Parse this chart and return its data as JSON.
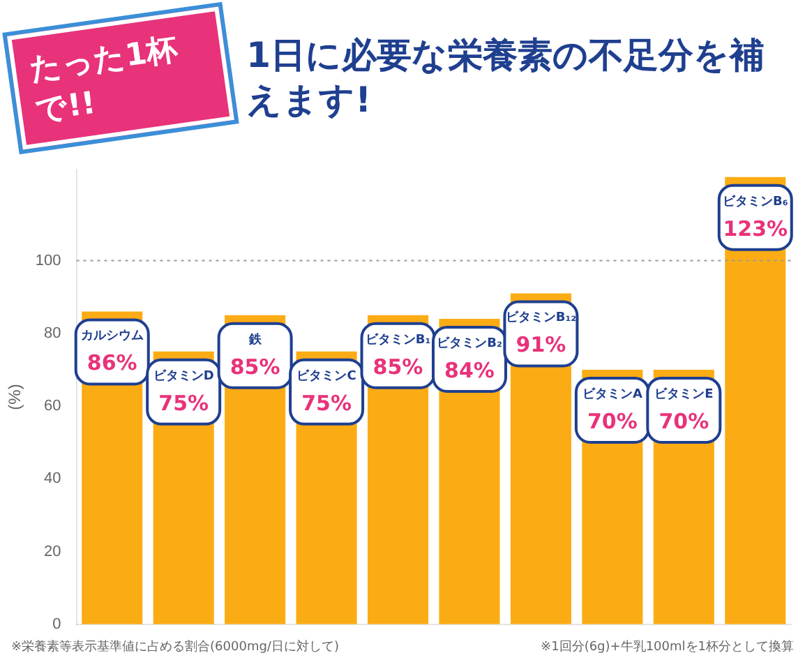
{
  "chart_data": {
    "type": "bar",
    "title": "たった1杯で!!",
    "subtitle": "1日に必要な栄養素の不足分を補えます!",
    "ylabel": "(%)",
    "categories": [
      "カルシウム",
      "ビタミンD",
      "鉄",
      "ビタミンC",
      "ビタミンB₁",
      "ビタミンB₂",
      "ビタミンB₁₂",
      "ビタミンA",
      "ビタミンE",
      "ビタミンB₆"
    ],
    "values": [
      86,
      75,
      85,
      75,
      85,
      84,
      91,
      70,
      70,
      123
    ],
    "value_labels": [
      "86%",
      "75%",
      "85%",
      "75%",
      "85%",
      "84%",
      "91%",
      "70%",
      "70%",
      "123%"
    ],
    "color": "#fbac14",
    "ylim": [
      0,
      125
    ],
    "yticks": [
      0,
      20,
      40,
      60,
      80,
      100
    ],
    "ref_lines": [
      {
        "axis": "y",
        "value": 100,
        "color": "#999999",
        "line_style": "dotted"
      }
    ],
    "grid": false,
    "legend": false,
    "annotations": [
      "※栄養素等表示基準値に占める割合(6000mg/日に対して)",
      "※1回分(6g)+牛乳100mlを1杯分として換算"
    ]
  }
}
